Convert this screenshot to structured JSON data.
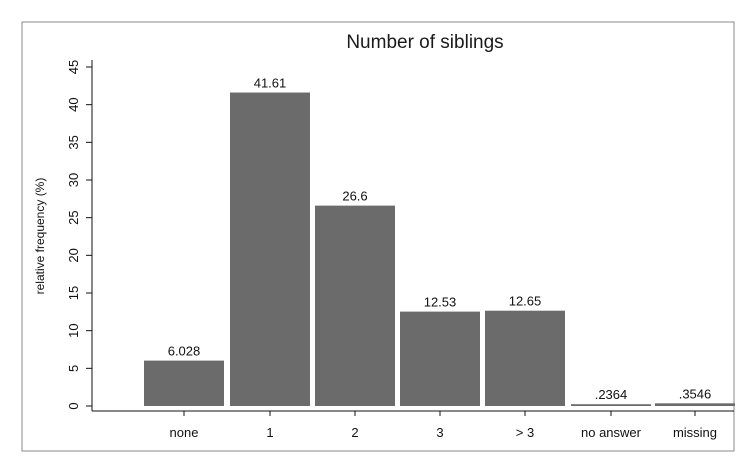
{
  "chart_data": {
    "type": "bar",
    "title": "Number of siblings",
    "ylabel": "relative frequency (%)",
    "xlabel": "",
    "categories": [
      "none",
      "1",
      "2",
      "3",
      "> 3",
      "no answer",
      "missing"
    ],
    "values": [
      6.028,
      41.61,
      26.6,
      12.53,
      12.65,
      0.2364,
      0.3546
    ],
    "value_labels": [
      "6.028",
      "41.61",
      "26.6",
      "12.53",
      "12.65",
      ".2364",
      ".3546"
    ],
    "ylim": [
      0,
      45
    ],
    "yticks": [
      0,
      5,
      10,
      15,
      20,
      25,
      30,
      35,
      40,
      45
    ],
    "grid": false,
    "legend": "none",
    "colors": {
      "bar": "#6b6b6b",
      "frame": "#8a8a8a",
      "background": "#ffffff"
    }
  }
}
